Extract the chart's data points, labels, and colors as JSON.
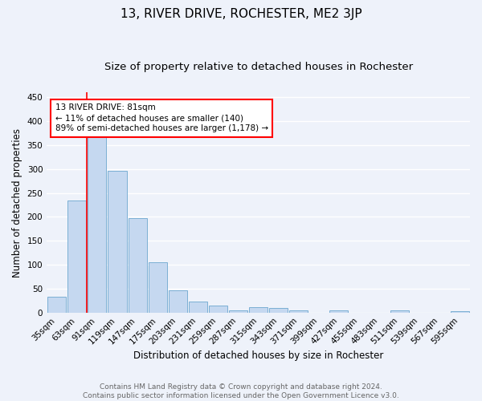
{
  "title": "13, RIVER DRIVE, ROCHESTER, ME2 3JP",
  "subtitle": "Size of property relative to detached houses in Rochester",
  "xlabel": "Distribution of detached houses by size in Rochester",
  "ylabel": "Number of detached properties",
  "bar_color": "#c5d8f0",
  "bar_edge_color": "#7bafd4",
  "categories": [
    "35sqm",
    "63sqm",
    "91sqm",
    "119sqm",
    "147sqm",
    "175sqm",
    "203sqm",
    "231sqm",
    "259sqm",
    "287sqm",
    "315sqm",
    "343sqm",
    "371sqm",
    "399sqm",
    "427sqm",
    "455sqm",
    "483sqm",
    "511sqm",
    "539sqm",
    "567sqm",
    "595sqm"
  ],
  "values": [
    33,
    235,
    370,
    297,
    197,
    105,
    47,
    23,
    15,
    5,
    11,
    10,
    5,
    0,
    4,
    0,
    0,
    4,
    0,
    0,
    3
  ],
  "ylim": [
    0,
    460
  ],
  "yticks": [
    0,
    50,
    100,
    150,
    200,
    250,
    300,
    350,
    400,
    450
  ],
  "vline_x_index": 1.5,
  "annotation_text": "13 RIVER DRIVE: 81sqm\n← 11% of detached houses are smaller (140)\n89% of semi-detached houses are larger (1,178) →",
  "footer_line1": "Contains HM Land Registry data © Crown copyright and database right 2024.",
  "footer_line2": "Contains public sector information licensed under the Open Government Licence v3.0.",
  "bg_color": "#eef2fa",
  "grid_color": "#ffffff",
  "title_fontsize": 11,
  "subtitle_fontsize": 9.5,
  "axis_label_fontsize": 8.5,
  "tick_fontsize": 7.5,
  "footer_fontsize": 6.5
}
